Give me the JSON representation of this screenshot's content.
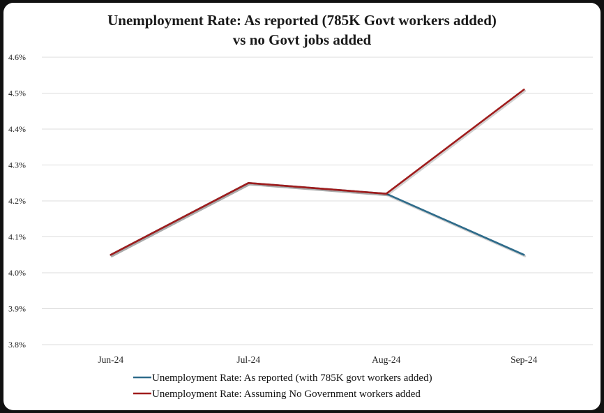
{
  "chart_data": {
    "type": "line",
    "title": "Unemployment Rate: As reported (785K Govt workers added)",
    "subtitle": "vs no Govt jobs added",
    "xlabel": "",
    "ylabel": "",
    "categories": [
      "Jun-24",
      "Jul-24",
      "Aug-24",
      "Sep-24"
    ],
    "ylim": [
      3.8,
      4.6
    ],
    "y_ticks": [
      "3.8%",
      "3.9%",
      "4.0%",
      "4.1%",
      "4.2%",
      "4.3%",
      "4.4%",
      "4.5%",
      "4.6%"
    ],
    "grid": true,
    "legend_position": "bottom",
    "series": [
      {
        "name": "Unemployment Rate: As reported (with 785K govt workers added)",
        "values": [
          4.05,
          4.25,
          4.22,
          4.05
        ],
        "color": "#2e6b8a"
      },
      {
        "name": "Unemployment Rate: Assuming No Government workers added",
        "values": [
          4.05,
          4.25,
          4.22,
          4.51
        ],
        "color": "#a01c1c"
      }
    ]
  }
}
